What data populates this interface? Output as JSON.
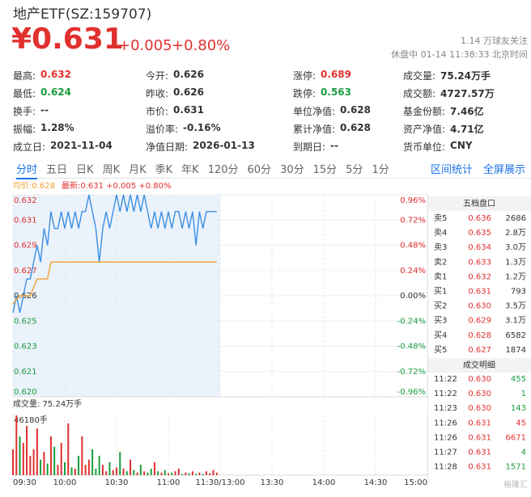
{
  "header": {
    "title": "地产ETF(SZ:159707)",
    "price": "¥0.631",
    "change": "+0.005",
    "change_pct": "+0.80%",
    "followers": "1.14 万球友关注",
    "status": "休盘中 01-14 11:38:33 北京时间"
  },
  "stats": [
    [
      {
        "label": "最高:",
        "value": "0.632",
        "color": "#e0312f"
      },
      {
        "label": "今开:",
        "value": "0.626"
      },
      {
        "label": "涨停:",
        "value": "0.689",
        "color": "#e0312f"
      },
      {
        "label": "成交量:",
        "value": "75.24万手"
      }
    ],
    [
      {
        "label": "最低:",
        "value": "0.624",
        "color": "#1a9d3f"
      },
      {
        "label": "昨收:",
        "value": "0.626"
      },
      {
        "label": "跌停:",
        "value": "0.563",
        "color": "#1a9d3f"
      },
      {
        "label": "成交额:",
        "value": "4727.57万"
      }
    ],
    [
      {
        "label": "换手:",
        "value": "--"
      },
      {
        "label": "市价:",
        "value": "0.631"
      },
      {
        "label": "单位净值:",
        "value": "0.628"
      },
      {
        "label": "基金份额:",
        "value": "7.46亿"
      }
    ],
    [
      {
        "label": "振幅:",
        "value": "1.28%"
      },
      {
        "label": "溢价率:",
        "value": "-0.16%"
      },
      {
        "label": "累计净值:",
        "value": "0.628"
      },
      {
        "label": "资产净值:",
        "value": "4.71亿"
      }
    ],
    [
      {
        "label": "成立日:",
        "value": "2021-11-04"
      },
      {
        "label": "净值日期:",
        "value": "2026-01-13"
      },
      {
        "label": "到期日:",
        "value": "--"
      },
      {
        "label": "货币单位:",
        "value": "CNY"
      }
    ]
  ],
  "tabs": {
    "items": [
      "分时",
      "五日",
      "日K",
      "周K",
      "月K",
      "季K",
      "年K",
      "120分",
      "60分",
      "30分",
      "15分",
      "5分",
      "1分"
    ],
    "active": 0,
    "links": [
      "区间统计",
      "全屏展示"
    ]
  },
  "chart_data": {
    "type": "line",
    "legend_avg": "均价:0.628",
    "legend_latest": "最新:0.631 +0.005 +0.80%",
    "x": [
      0,
      2,
      4,
      6,
      8,
      10,
      12,
      14,
      16,
      18,
      20,
      22,
      24,
      26,
      28,
      30,
      32,
      34,
      36,
      38,
      40,
      42,
      44,
      46,
      48,
      50,
      52,
      54,
      56,
      58,
      60,
      62,
      64,
      66,
      68,
      70,
      72,
      74,
      76,
      78,
      80,
      82,
      84,
      86,
      88,
      90,
      92,
      94,
      96,
      98,
      100,
      102,
      104,
      106,
      108,
      110,
      112,
      114,
      116,
      118
    ],
    "xlim": [
      0,
      240
    ],
    "xticks": [
      {
        "value": 0,
        "label": "09:30"
      },
      {
        "value": 30,
        "label": "10:00"
      },
      {
        "value": 60,
        "label": "10:30"
      },
      {
        "value": 90,
        "label": "11:00"
      },
      {
        "value": 120,
        "label": "11:30/13:00"
      },
      {
        "value": 150,
        "label": "13:30"
      },
      {
        "value": 180,
        "label": "14:00"
      },
      {
        "value": 210,
        "label": "14:30"
      },
      {
        "value": 240,
        "label": "15:00"
      }
    ],
    "ylim": [
      0.62,
      0.632
    ],
    "yticks": [
      0.632,
      {
        "value": 0.6305,
        "label": "0.631"
      },
      0.629,
      {
        "value": 0.6275,
        "label": "0.627"
      },
      0.626,
      {
        "value": 0.6245,
        "label": "0.625"
      },
      0.623,
      {
        "value": 0.6215,
        "label": "0.621"
      },
      {
        "value": 0.62,
        "label": "0.620"
      }
    ],
    "y2lim": [
      -0.96,
      0.96
    ],
    "y2ticks": [
      {
        "value": 0.96,
        "label": "0.96%"
      },
      {
        "value": 0.72,
        "label": "0.72%"
      },
      {
        "value": 0.48,
        "label": "0.48%"
      },
      {
        "value": 0.24,
        "label": "0.24%"
      },
      {
        "value": 0,
        "label": "0.00%"
      },
      {
        "value": -0.24,
        "label": "-0.24%"
      },
      {
        "value": -0.48,
        "label": "-0.48%"
      },
      {
        "value": -0.72,
        "label": "-0.72%"
      },
      {
        "value": -0.96,
        "label": "-0.96%"
      }
    ],
    "series": [
      {
        "name": "最新",
        "color": "#3b8fe0",
        "values": [
          0.625,
          0.626,
          0.625,
          0.626,
          0.627,
          0.627,
          0.628,
          0.629,
          0.628,
          0.63,
          0.629,
          0.631,
          0.63,
          0.63,
          0.631,
          0.63,
          0.631,
          0.63,
          0.631,
          0.63,
          0.631,
          0.631,
          0.632,
          0.631,
          0.63,
          0.628,
          0.63,
          0.631,
          0.63,
          0.631,
          0.632,
          0.631,
          0.632,
          0.631,
          0.632,
          0.631,
          0.632,
          0.631,
          0.632,
          0.631,
          0.63,
          0.631,
          0.63,
          0.631,
          0.63,
          0.631,
          0.63,
          0.631,
          0.631,
          0.63,
          0.631,
          0.63,
          0.631,
          0.629,
          0.631,
          0.63,
          0.631,
          0.631,
          0.631,
          0.631
        ]
      },
      {
        "name": "均价",
        "color": "#f0a030",
        "values": [
          0.6255,
          0.6258,
          0.626,
          0.626,
          0.626,
          0.626,
          0.6265,
          0.627,
          0.627,
          0.627,
          0.627,
          0.628,
          0.628,
          0.628,
          0.628,
          0.628,
          0.628,
          0.628,
          0.628,
          0.628,
          0.628,
          0.628,
          0.628,
          0.628,
          0.628,
          0.628,
          0.628,
          0.628,
          0.628,
          0.628,
          0.628,
          0.628,
          0.628,
          0.628,
          0.628,
          0.628,
          0.628,
          0.628,
          0.628,
          0.628,
          0.628,
          0.628,
          0.628,
          0.628,
          0.628,
          0.628,
          0.628,
          0.628,
          0.628,
          0.628,
          0.628,
          0.628,
          0.628,
          0.628,
          0.628,
          0.628,
          0.628,
          0.628,
          0.628,
          0.628
        ]
      }
    ],
    "volume": {
      "title": "成交量: 75.24万手",
      "up_color": "#e0312f",
      "down_color": "#1a9d3f",
      "ylim": [
        0,
        46180
      ],
      "yticks": [
        {
          "value": 46180,
          "label": "46180手"
        }
      ],
      "values": [
        20000,
        46180,
        30000,
        25000,
        38000,
        15000,
        20000,
        36000,
        12000,
        18000,
        9000,
        30000,
        22000,
        8000,
        25000,
        10000,
        40000,
        6000,
        5000,
        15000,
        30000,
        8000,
        12000,
        20000,
        5000,
        15000,
        8000,
        3000,
        10000,
        4000,
        6000,
        18000,
        5000,
        3000,
        12000,
        4000,
        2000,
        8000,
        3000,
        2000,
        5000,
        10000,
        3000,
        2000,
        4000,
        1500,
        2000,
        3000,
        5000,
        1000,
        2000,
        1500,
        3000,
        1000,
        2000,
        1000,
        3000,
        1500,
        4000,
        2000
      ]
    }
  },
  "order_book": {
    "title": "五档盘口",
    "rows": [
      [
        "卖5",
        "0.636",
        "2686"
      ],
      [
        "卖4",
        "0.635",
        "2.8万"
      ],
      [
        "卖3",
        "0.634",
        "3.0万"
      ],
      [
        "卖2",
        "0.633",
        "1.3万"
      ],
      [
        "卖1",
        "0.632",
        "1.2万"
      ],
      [
        "买1",
        "0.631",
        "793"
      ],
      [
        "买2",
        "0.630",
        "3.5万"
      ],
      [
        "买3",
        "0.629",
        "3.1万"
      ],
      [
        "买4",
        "0.628",
        "6582"
      ],
      [
        "买5",
        "0.627",
        "1874"
      ]
    ]
  },
  "trades": {
    "title": "成交明细",
    "rows": [
      {
        "time": "11:22",
        "price": "0.630",
        "volume": "455",
        "color": "#1a9d3f"
      },
      {
        "time": "11:22",
        "price": "0.630",
        "volume": "1",
        "color": "#1a9d3f"
      },
      {
        "time": "11:23",
        "price": "0.630",
        "volume": "143",
        "color": "#1a9d3f"
      },
      {
        "time": "11:26",
        "price": "0.631",
        "volume": "45",
        "color": "#e0312f"
      },
      {
        "time": "11:26",
        "price": "0.631",
        "volume": "6671",
        "color": "#e0312f"
      },
      {
        "time": "11:27",
        "price": "0.631",
        "volume": "4",
        "color": "#1a9d3f"
      },
      {
        "time": "11:28",
        "price": "0.631",
        "volume": "1571",
        "color": "#1a9d3f"
      }
    ]
  },
  "watermark": "格隆汇"
}
